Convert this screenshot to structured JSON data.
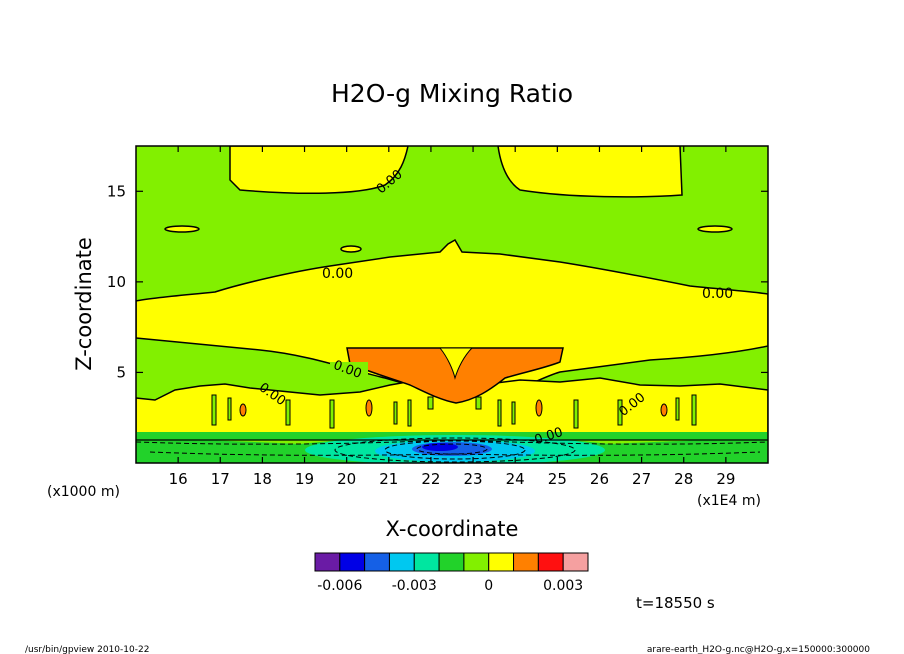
{
  "chart_data": {
    "type": "heatmap",
    "title": "H2O-g Mixing Ratio",
    "xlabel": "X-coordinate",
    "ylabel": "Z-coordinate",
    "x_tick_labels": [
      "16",
      "17",
      "18",
      "19",
      "20",
      "21",
      "22",
      "23",
      "24",
      "25",
      "26",
      "27",
      "28",
      "29"
    ],
    "x_ticks": [
      16,
      17,
      18,
      19,
      20,
      21,
      22,
      23,
      24,
      25,
      26,
      27,
      28,
      29
    ],
    "xlim": [
      15,
      30
    ],
    "x_scale_note": "(x1E4 m)",
    "y_scale_note": "(x1000 m)",
    "y_tick_labels": [
      "5",
      "10",
      "15"
    ],
    "y_ticks": [
      5,
      10,
      15
    ],
    "ylim": [
      0,
      17.5
    ],
    "contour_labels": [
      {
        "text": "0.00",
        "x": 20.0,
        "z": 5.0
      },
      {
        "text": "0.00",
        "x": 18.2,
        "z": 3.6
      },
      {
        "text": "0.00",
        "x": 23.6,
        "z": 16.0
      },
      {
        "text": "0.00",
        "x": 19.7,
        "z": 10.6
      },
      {
        "text": "0.00",
        "x": 28.2,
        "z": 9.6
      },
      {
        "text": "0.00",
        "x": 26.2,
        "z": 3.5
      },
      {
        "text": "0.00",
        "x": 21.9,
        "z": 1.6
      }
    ],
    "colorbar": {
      "colors": [
        "#6a1ba5",
        "#0000e6",
        "#1560e6",
        "#00c8f0",
        "#00e6a0",
        "#22d22a",
        "#82f000",
        "#ffff00",
        "#ff8000",
        "#ff1010",
        "#f5a0a0"
      ],
      "tick_labels": [
        "-0.006",
        "-0.003",
        "0",
        "0.003"
      ],
      "tick_values": [
        -0.006,
        -0.003,
        0,
        0.003
      ],
      "range": [
        -0.007,
        0.004
      ]
    },
    "time_label": "t=18550 s"
  },
  "footer": {
    "left": "/usr/bin/gpview  2010-10-22",
    "right": "arare-earth_H2O-g.nc@H2O-g,x=150000:300000"
  }
}
